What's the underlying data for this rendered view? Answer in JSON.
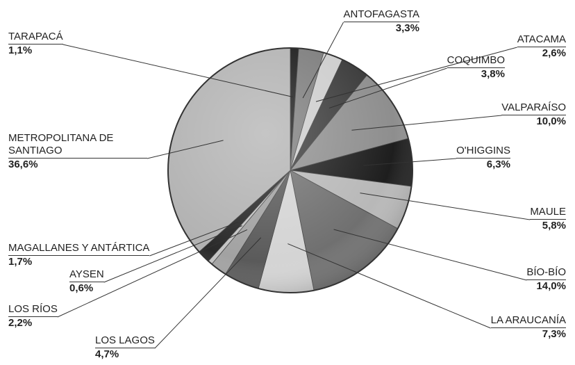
{
  "chart_data": {
    "type": "pie",
    "categories": [
      "TARAPACÁ",
      "ANTOFAGASTA",
      "ATACAMA",
      "COQUIMBO",
      "VALPARAÍSO",
      "O'HIGGINS",
      "MAULE",
      "BÍO-BÍO",
      "LA ARAUCANÍA",
      "LOS LAGOS",
      "LOS RÍOS",
      "AYSEN",
      "MAGALLANES Y ANTÁRTICA",
      "METROPOLITANA DE SANTIAGO"
    ],
    "values": [
      1.1,
      3.3,
      2.6,
      3.8,
      10.0,
      6.3,
      5.8,
      14.0,
      7.3,
      4.7,
      2.2,
      0.6,
      1.7,
      36.6
    ],
    "value_labels": [
      "1,1%",
      "3,3%",
      "2,6%",
      "3,8%",
      "10,0%",
      "6,3%",
      "5,8%",
      "14,0%",
      "7,3%",
      "4,7%",
      "2,2%",
      "0,6%",
      "1,7%",
      "36,6%"
    ],
    "colors": [
      "#1a1a1a",
      "#7c7c7c",
      "#cdcdcd",
      "#3a3a3a",
      "#8e8e8e",
      "#1e1e1e",
      "#b8b8b8",
      "#707070",
      "#d4d4d4",
      "#5a5a5a",
      "#a2a2a2",
      "#c4c4c4",
      "#2a2a2a",
      "#b2b2b2"
    ]
  }
}
